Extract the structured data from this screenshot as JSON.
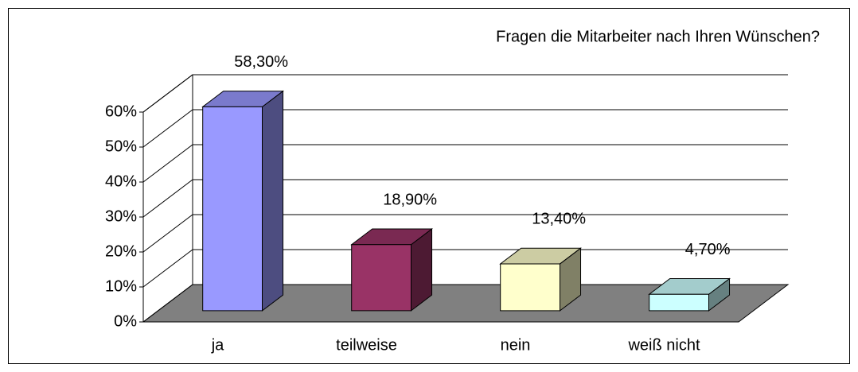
{
  "chart_data": {
    "type": "bar3d",
    "title": "Fragen die Mitarbeiter nach Ihren Wünschen?",
    "categories": [
      "ja",
      "teilweise",
      "nein",
      "weiß nicht"
    ],
    "values": [
      58.3,
      18.9,
      13.4,
      4.7
    ],
    "value_labels": [
      "58,30%",
      "18,90%",
      "13,40%",
      "4,70%"
    ],
    "colors": [
      "#9999ff",
      "#993366",
      "#ffffcc",
      "#ccffff"
    ],
    "ylim": [
      0,
      60
    ],
    "yticks": [
      {
        "value": 0,
        "label": "0%"
      },
      {
        "value": 10,
        "label": "10%"
      },
      {
        "value": 20,
        "label": "20%"
      },
      {
        "value": 30,
        "label": "30%"
      },
      {
        "value": 40,
        "label": "40%"
      },
      {
        "value": 50,
        "label": "50%"
      },
      {
        "value": 60,
        "label": "60%"
      }
    ],
    "grid": true
  }
}
